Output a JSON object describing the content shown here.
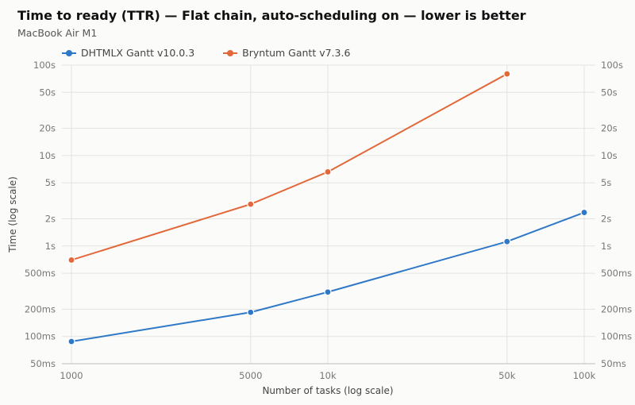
{
  "title": "Time to ready (TTR) — Flat chain, auto-scheduling on — lower is better",
  "subtitle": "MacBook Air M1",
  "colors": {
    "dhtmlx": "#2f78c8",
    "bryntum": "#e2683a",
    "grid": "#e3e3e0",
    "axis": "#c9c9c6",
    "tick": "#777777"
  },
  "chart_data": {
    "type": "line",
    "title": "Time to ready (TTR) — Flat chain, auto-scheduling on — lower is better",
    "subtitle": "MacBook Air M1",
    "xlabel": "Number of tasks (log scale)",
    "ylabel": "Time (log scale)",
    "x_scale": "log",
    "y_scale": "log",
    "xlim": [
      1000,
      100000
    ],
    "ylim": [
      0.05,
      100
    ],
    "x_ticks": [
      {
        "value": 1000,
        "label": "1000"
      },
      {
        "value": 5000,
        "label": "5000"
      },
      {
        "value": 10000,
        "label": "10k"
      },
      {
        "value": 50000,
        "label": "50k"
      },
      {
        "value": 100000,
        "label": "100k"
      }
    ],
    "y_ticks": [
      {
        "value": 0.05,
        "label": "50ms"
      },
      {
        "value": 0.1,
        "label": "100ms"
      },
      {
        "value": 0.2,
        "label": "200ms"
      },
      {
        "value": 0.5,
        "label": "500ms"
      },
      {
        "value": 1,
        "label": "1s"
      },
      {
        "value": 2,
        "label": "2s"
      },
      {
        "value": 5,
        "label": "5s"
      },
      {
        "value": 10,
        "label": "10s"
      },
      {
        "value": 20,
        "label": "20s"
      },
      {
        "value": 50,
        "label": "50s"
      },
      {
        "value": 100,
        "label": "100s"
      }
    ],
    "grid": true,
    "legend": "top-left",
    "series": [
      {
        "name": "DHTMLX Gantt v10.0.3",
        "color": "#2f78c8",
        "x": [
          1000,
          5000,
          10000,
          50000,
          100000
        ],
        "y": [
          0.088,
          0.185,
          0.31,
          1.12,
          2.35
        ]
      },
      {
        "name": "Bryntum Gantt v7.3.6",
        "color": "#e2683a",
        "x": [
          1000,
          5000,
          10000,
          50000
        ],
        "y": [
          0.7,
          2.9,
          6.6,
          80
        ]
      }
    ]
  }
}
